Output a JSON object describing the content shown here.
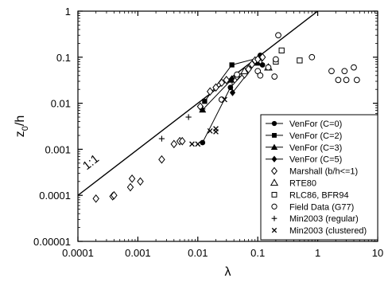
{
  "chart_data": {
    "type": "scatter",
    "title": "",
    "xlabel": "λ",
    "ylabel_main": "z",
    "ylabel_sub": "0",
    "ylabel_tail": "/h",
    "x_scale": "log",
    "y_scale": "log",
    "xlim": [
      0.0001,
      10
    ],
    "ylim": [
      1e-05,
      1
    ],
    "grid": false,
    "legend_position": "bottom-right",
    "x_ticks": [
      {
        "value": 0.0001,
        "label": "0.0001"
      },
      {
        "value": 0.001,
        "label": "0.001"
      },
      {
        "value": 0.01,
        "label": "0.01"
      },
      {
        "value": 0.1,
        "label": "0.1"
      },
      {
        "value": 1,
        "label": "1"
      },
      {
        "value": 10,
        "label": "10"
      }
    ],
    "y_ticks": [
      {
        "value": 1e-05,
        "label": "0.00001"
      },
      {
        "value": 0.0001,
        "label": "0.0001"
      },
      {
        "value": 0.001,
        "label": "0.001"
      },
      {
        "value": 0.01,
        "label": "0.01"
      },
      {
        "value": 0.1,
        "label": "0.1"
      },
      {
        "value": 1,
        "label": "1"
      }
    ],
    "reference_line": {
      "label": "1:1",
      "slope": 1
    },
    "series": [
      {
        "name": "VenFor (C=0)",
        "marker": "filled-circle",
        "connected": true,
        "points": [
          [
            0.012,
            0.0014
          ],
          [
            0.035,
            0.022
          ],
          [
            0.11,
            0.11
          ],
          [
            0.12,
            0.068
          ]
        ]
      },
      {
        "name": "VenFor (C=2)",
        "marker": "filled-square",
        "connected": true,
        "points": [
          [
            0.013,
            0.011
          ],
          [
            0.037,
            0.068
          ],
          [
            0.115,
            0.1
          ]
        ]
      },
      {
        "name": "VenFor (C=3)",
        "marker": "filled-triangle",
        "connected": true,
        "points": [
          [
            0.012,
            0.0072
          ],
          [
            0.036,
            0.032
          ],
          [
            0.1,
            0.075
          ]
        ]
      },
      {
        "name": "VenFor (C=5)",
        "marker": "filled-diamond",
        "connected": true,
        "points": [
          [
            0.037,
            0.034
          ],
          [
            0.038,
            0.017
          ],
          [
            0.11,
            0.1
          ]
        ]
      },
      {
        "name": "Marshall (b/h<=1)",
        "marker": "open-diamond",
        "connected": false,
        "points": [
          [
            0.0002,
            8.5e-05
          ],
          [
            0.00038,
            9.5e-05
          ],
          [
            0.0004,
            0.0001
          ],
          [
            0.00075,
            0.00015
          ],
          [
            0.0008,
            0.00023
          ],
          [
            0.0011,
            0.0002
          ],
          [
            0.0025,
            0.0006
          ],
          [
            0.004,
            0.0013
          ],
          [
            0.005,
            0.0015
          ],
          [
            0.0055,
            0.0015
          ],
          [
            0.011,
            0.0085
          ],
          [
            0.016,
            0.018
          ],
          [
            0.02,
            0.022
          ],
          [
            0.025,
            0.028
          ],
          [
            0.03,
            0.032
          ],
          [
            0.045,
            0.038
          ],
          [
            0.06,
            0.042
          ],
          [
            0.07,
            0.055
          ],
          [
            0.08,
            0.07
          ],
          [
            0.09,
            0.085
          ],
          [
            0.1,
            0.09
          ],
          [
            0.12,
            0.1
          ]
        ]
      },
      {
        "name": "RTE80",
        "marker": "open-triangle",
        "connected": false,
        "points": [
          [
            0.06,
            0.05
          ],
          [
            0.15,
            0.06
          ]
        ]
      },
      {
        "name": "RLC86, BFR94",
        "marker": "open-square",
        "connected": false,
        "points": [
          [
            0.2,
            0.08
          ],
          [
            0.25,
            0.14
          ],
          [
            0.5,
            0.085
          ]
        ]
      },
      {
        "name": "Field Data (G77)",
        "marker": "open-circle",
        "connected": false,
        "points": [
          [
            0.025,
            0.012
          ],
          [
            0.045,
            0.042
          ],
          [
            0.1,
            0.05
          ],
          [
            0.11,
            0.04
          ],
          [
            0.15,
            0.06
          ],
          [
            0.19,
            0.038
          ],
          [
            0.2,
            0.09
          ],
          [
            0.22,
            0.3
          ],
          [
            0.8,
            0.1
          ],
          [
            1.7,
            0.05
          ],
          [
            2.2,
            0.032
          ],
          [
            2.8,
            0.05
          ],
          [
            3.0,
            0.032
          ],
          [
            4.0,
            0.06
          ],
          [
            4.5,
            0.032
          ]
        ]
      },
      {
        "name": "Min2003 (regular)",
        "marker": "plus",
        "connected": false,
        "points": [
          [
            0.0025,
            0.0017
          ],
          [
            0.007,
            0.005
          ],
          [
            0.012,
            0.0075
          ]
        ]
      },
      {
        "name": "Min2003 (clustered)",
        "marker": "cross",
        "connected": false,
        "points": [
          [
            0.008,
            0.0013
          ],
          [
            0.01,
            0.0013
          ],
          [
            0.016,
            0.0025
          ],
          [
            0.02,
            0.0028
          ],
          [
            0.02,
            0.0024
          ],
          [
            0.028,
            0.012
          ]
        ]
      }
    ]
  }
}
